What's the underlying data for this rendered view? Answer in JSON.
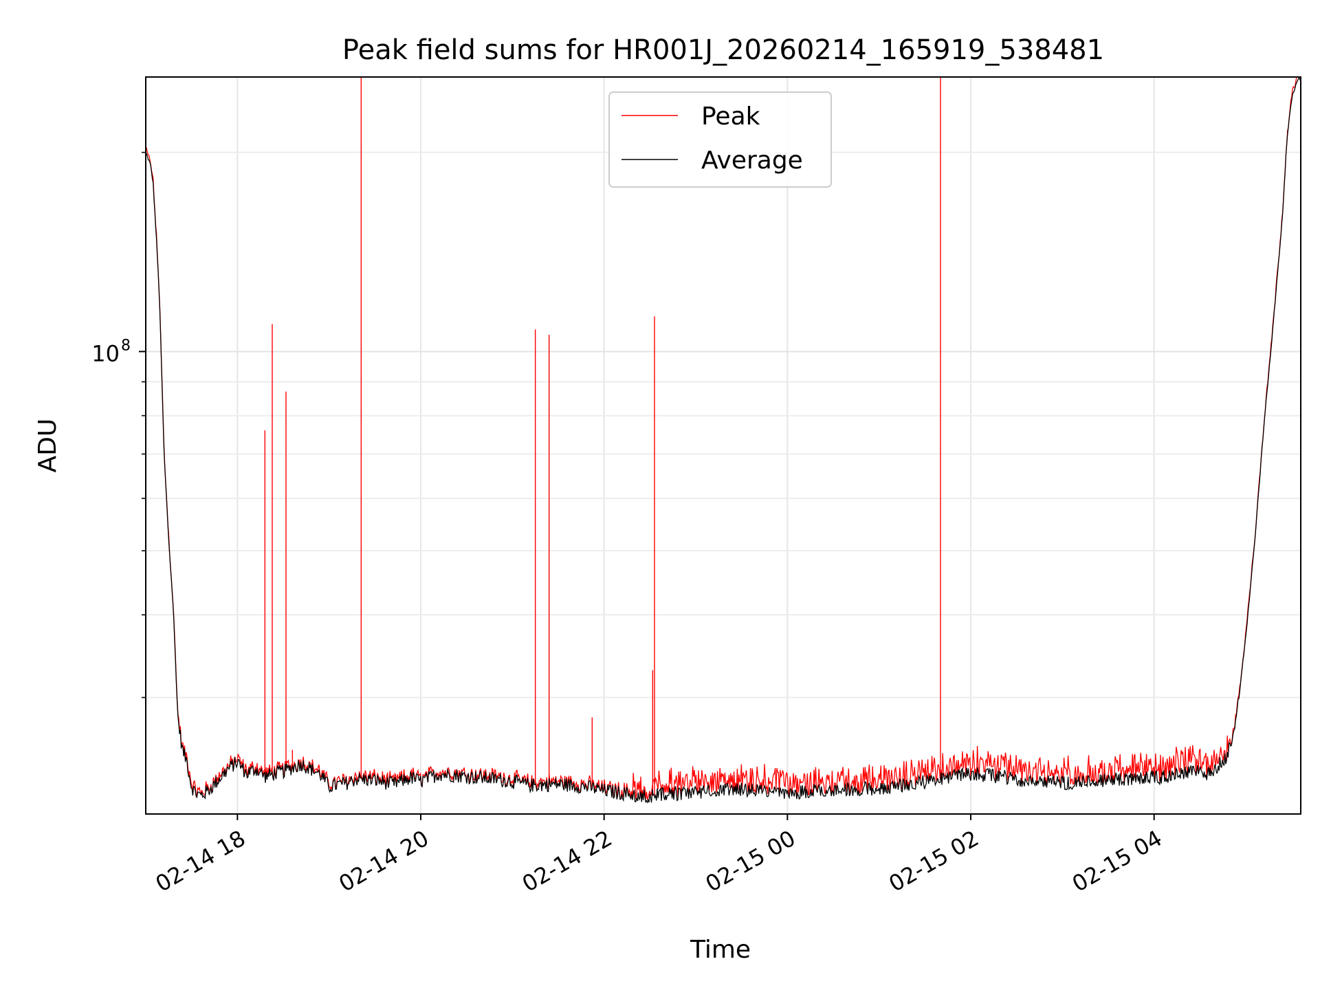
{
  "chart_data": {
    "type": "line",
    "title": "Peak field sums for HR001J_20260214_165919_538481",
    "xlabel": "Time",
    "ylabel": "ADU",
    "yscale": "log",
    "ylim": [
      20000000,
      260000000
    ],
    "xlim_hours": [
      17.0,
      29.6
    ],
    "grid": true,
    "legend_position": "top-center",
    "x_ticks": [
      {
        "hour": 18,
        "label": "02-14 18"
      },
      {
        "hour": 20,
        "label": "02-14 20"
      },
      {
        "hour": 22,
        "label": "02-14 22"
      },
      {
        "hour": 24,
        "label": "02-15 00"
      },
      {
        "hour": 26,
        "label": "02-15 02"
      },
      {
        "hour": 28,
        "label": "02-15 04"
      }
    ],
    "y_major_ticks": [
      {
        "value": 100000000,
        "label": "10",
        "sup": "8"
      }
    ],
    "y_minor_values": [
      30000000,
      40000000,
      50000000,
      60000000,
      70000000,
      80000000,
      90000000,
      200000000
    ],
    "series": [
      {
        "name": "Average",
        "color": "#000000",
        "hours": [
          17.0,
          17.05,
          17.08,
          17.12,
          17.15,
          17.2,
          17.25,
          17.3,
          17.35,
          17.4,
          17.45,
          17.5,
          17.55,
          17.6,
          17.7,
          17.8,
          17.9,
          18.0,
          18.1,
          18.2,
          18.3,
          18.5,
          18.7,
          18.9,
          19.0,
          19.2,
          19.3,
          19.5,
          19.7,
          19.9,
          20.0,
          20.2,
          20.5,
          20.8,
          21.0,
          21.2,
          21.5,
          21.8,
          22.0,
          22.2,
          22.5,
          22.8,
          23.0,
          23.5,
          23.8,
          24.0,
          24.3,
          24.8,
          25.2,
          25.6,
          25.9,
          26.0,
          26.3,
          26.6,
          27.0,
          27.5,
          28.0,
          28.2,
          28.4,
          28.5,
          28.6,
          28.8,
          28.9,
          29.0,
          29.1,
          29.2,
          29.3,
          29.4,
          29.45,
          29.5,
          29.55,
          29.6
        ],
        "values": [
          200000000,
          192000000,
          180000000,
          145000000,
          120000000,
          70000000,
          52000000,
          41000000,
          28000000,
          25000000,
          24000000,
          22000000,
          21500000,
          21300000,
          21800000,
          22600000,
          23400000,
          24000000,
          23000000,
          23400000,
          22800000,
          23200000,
          23800000,
          23000000,
          22000000,
          22300000,
          22600000,
          22500000,
          22200000,
          22700000,
          22400000,
          23000000,
          22800000,
          22600000,
          22400000,
          22100000,
          22200000,
          22000000,
          21700000,
          21500000,
          21300000,
          21500000,
          21600000,
          21800000,
          21600000,
          21400000,
          21700000,
          21800000,
          22000000,
          22500000,
          22900000,
          23000000,
          22800000,
          22500000,
          22300000,
          22500000,
          22700000,
          22800000,
          23300000,
          23100000,
          23000000,
          24500000,
          28000000,
          37000000,
          52000000,
          78000000,
          110000000,
          160000000,
          210000000,
          240000000,
          255000000,
          260000000
        ]
      },
      {
        "name": "Peak",
        "color": "#ff0000",
        "spikes": [
          {
            "hour": 18.3,
            "value": 76000000
          },
          {
            "hour": 18.38,
            "value": 110000000
          },
          {
            "hour": 18.53,
            "value": 87000000
          },
          {
            "hour": 18.6,
            "value": 25000000
          },
          {
            "hour": 19.35,
            "value": 260000000
          },
          {
            "hour": 21.25,
            "value": 108000000
          },
          {
            "hour": 21.4,
            "value": 106000000
          },
          {
            "hour": 21.87,
            "value": 28000000
          },
          {
            "hour": 22.53,
            "value": 33000000
          },
          {
            "hour": 22.55,
            "value": 113000000
          },
          {
            "hour": 25.67,
            "value": 260000000
          }
        ]
      }
    ]
  }
}
